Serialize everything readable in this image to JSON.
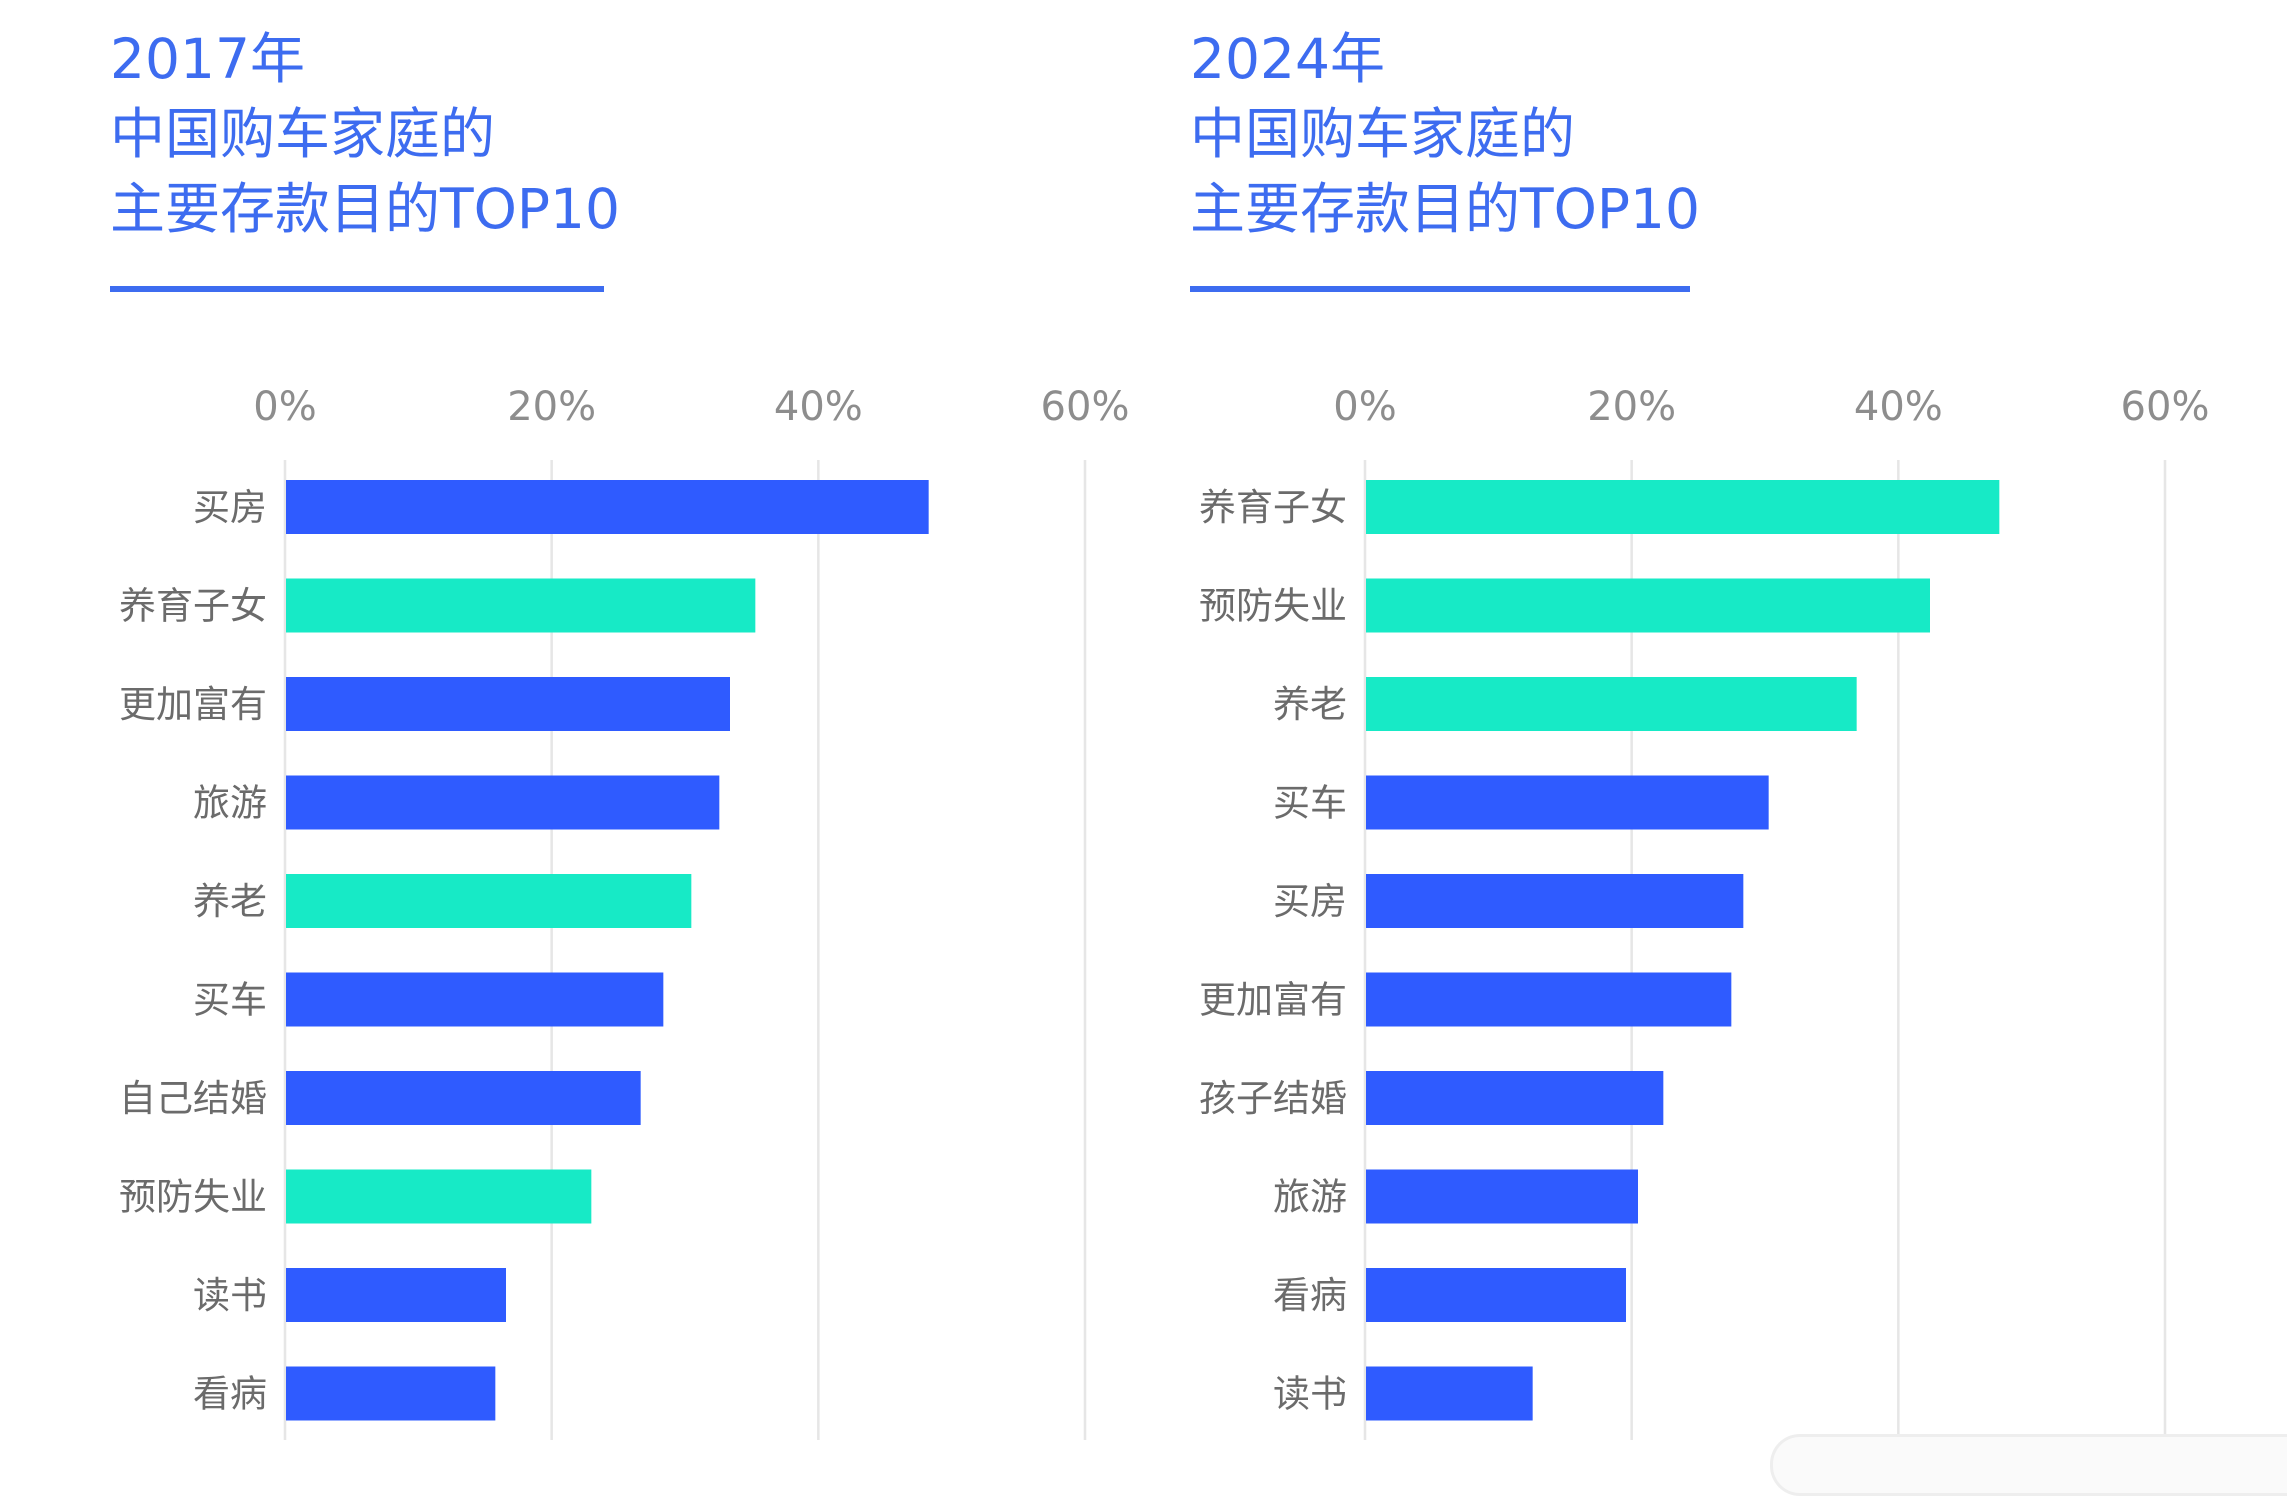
{
  "colors": {
    "title": "#3d6cf0",
    "blue_bar": "#2f5bff",
    "teal_bar": "#17eac6"
  },
  "charts": [
    {
      "title_lines": [
        "2017年",
        "中国购车家庭的",
        "主要存款目的TOP10"
      ]
    },
    {
      "title_lines": [
        "2024年",
        "中国购车家庭的",
        "主要存款目的TOP10"
      ]
    }
  ],
  "chart_data": [
    {
      "type": "bar",
      "orientation": "horizontal",
      "title": "2017年 中国购车家庭的 主要存款目的TOP10",
      "xlim": [
        0,
        60
      ],
      "xticks": [
        "0%",
        "20%",
        "40%",
        "60%"
      ],
      "grid": true,
      "categories": [
        "买房",
        "养育子女",
        "更加富有",
        "旅游",
        "养老",
        "买车",
        "自己结婚",
        "预防失业",
        "读书",
        "看病"
      ],
      "values": [
        48.2,
        35.2,
        33.3,
        32.5,
        30.4,
        28.3,
        26.6,
        22.9,
        16.5,
        15.7
      ],
      "highlight": [
        false,
        true,
        false,
        false,
        true,
        false,
        false,
        true,
        false,
        false
      ]
    },
    {
      "type": "bar",
      "orientation": "horizontal",
      "title": "2024年 中国购车家庭的 主要存款目的TOP10",
      "xlim": [
        0,
        60
      ],
      "xticks": [
        "0%",
        "20%",
        "40%",
        "60%"
      ],
      "grid": true,
      "categories": [
        "养育子女",
        "预防失业",
        "养老",
        "买车",
        "买房",
        "更加富有",
        "孩子结婚",
        "旅游",
        "看病",
        "读书"
      ],
      "values": [
        47.5,
        42.3,
        36.8,
        30.2,
        28.3,
        27.4,
        22.3,
        20.4,
        19.5,
        12.5
      ],
      "highlight": [
        true,
        true,
        true,
        false,
        false,
        false,
        false,
        false,
        false,
        false
      ]
    }
  ]
}
